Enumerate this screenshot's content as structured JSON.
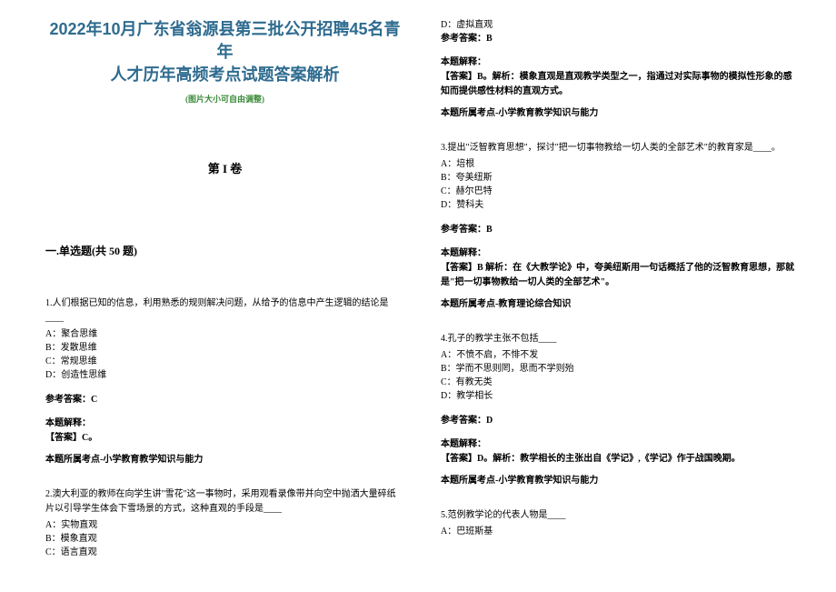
{
  "colors": {
    "title_color": "#2e6b8f",
    "zoom_note_color": "#3a8a3a",
    "text_color": "#000000",
    "background": "#ffffff"
  },
  "typography": {
    "title_fontsize": 18,
    "body_fontsize": 10,
    "zoom_note_fontsize": 9,
    "volume_header_fontsize": 13,
    "section_header_fontsize": 12
  },
  "doc_title_line1": "2022年10月广东省翁源县第三批公开招聘45名青年",
  "doc_title_line2": "人才历年高频考点试题答案解析",
  "zoom_note": "(图片大小可自由调整)",
  "volume_header": "第 I 卷",
  "section_header": "一.单选题(共 50 题)",
  "q1": {
    "stem": "1.人们根据已知的信息，利用熟悉的规则解决问题，从给予的信息中产生逻辑的结论是____",
    "A": "A：聚合思维",
    "B": "B：发散思维",
    "C": "C：常规思维",
    "D": "D：创造性思维",
    "ref": "参考答案：C",
    "explain_label": "本题解释：",
    "explain": "【答案】C。",
    "topic": "本题所属考点-小学教育教学知识与能力"
  },
  "q2": {
    "stem": "2.澳大利亚的教师在向学生讲\"雪花\"这一事物时，采用观看录像带并向空中抛洒大量碎纸片以引导学生体会下雪场景的方式，这种直观的手段是____",
    "A": "A：实物直观",
    "B": "B：模象直观",
    "C": "C：语言直观",
    "D": "D：虚拟直观",
    "ref": "参考答案：B",
    "explain_label": "本题解释：",
    "explain": "【答案】B。解析：模象直观是直观教学类型之一，指通过对实际事物的模拟性形象的感知而提供感性材料的直观方式。",
    "topic": "本题所属考点-小学教育教学知识与能力"
  },
  "q3": {
    "stem": "3.提出\"泛智教育思想\"，探讨\"把一切事物教给一切人类的全部艺术\"的教育家是____。",
    "A": "A：培根",
    "B": "B：夸美纽斯",
    "C": "C：赫尔巴特",
    "D": "D：赞科夫",
    "ref": "参考答案：B",
    "explain_label": "本题解释：",
    "explain": "【答案】B 解析：在《大教学论》中，夸美纽斯用一句话概括了他的泛智教育思想，那就是\"把一切事物教给一切人类的全部艺术\"。",
    "topic": "本题所属考点-教育理论综合知识"
  },
  "q4": {
    "stem": "4.孔子的教学主张不包括____",
    "A": "A：不愤不启，不悱不发",
    "B": "B：学而不思则罔，思而不学则殆",
    "C": "C：有教无类",
    "D": "D：教学相长",
    "ref": "参考答案：D",
    "explain_label": "本题解释：",
    "explain": "【答案】D。解析：教学相长的主张出自《学记》,《学记》作于战国晚期。",
    "topic": "本题所属考点-小学教育教学知识与能力"
  },
  "q5": {
    "stem": "5.范例教学论的代表人物是____",
    "A": "A：巴班斯基"
  }
}
